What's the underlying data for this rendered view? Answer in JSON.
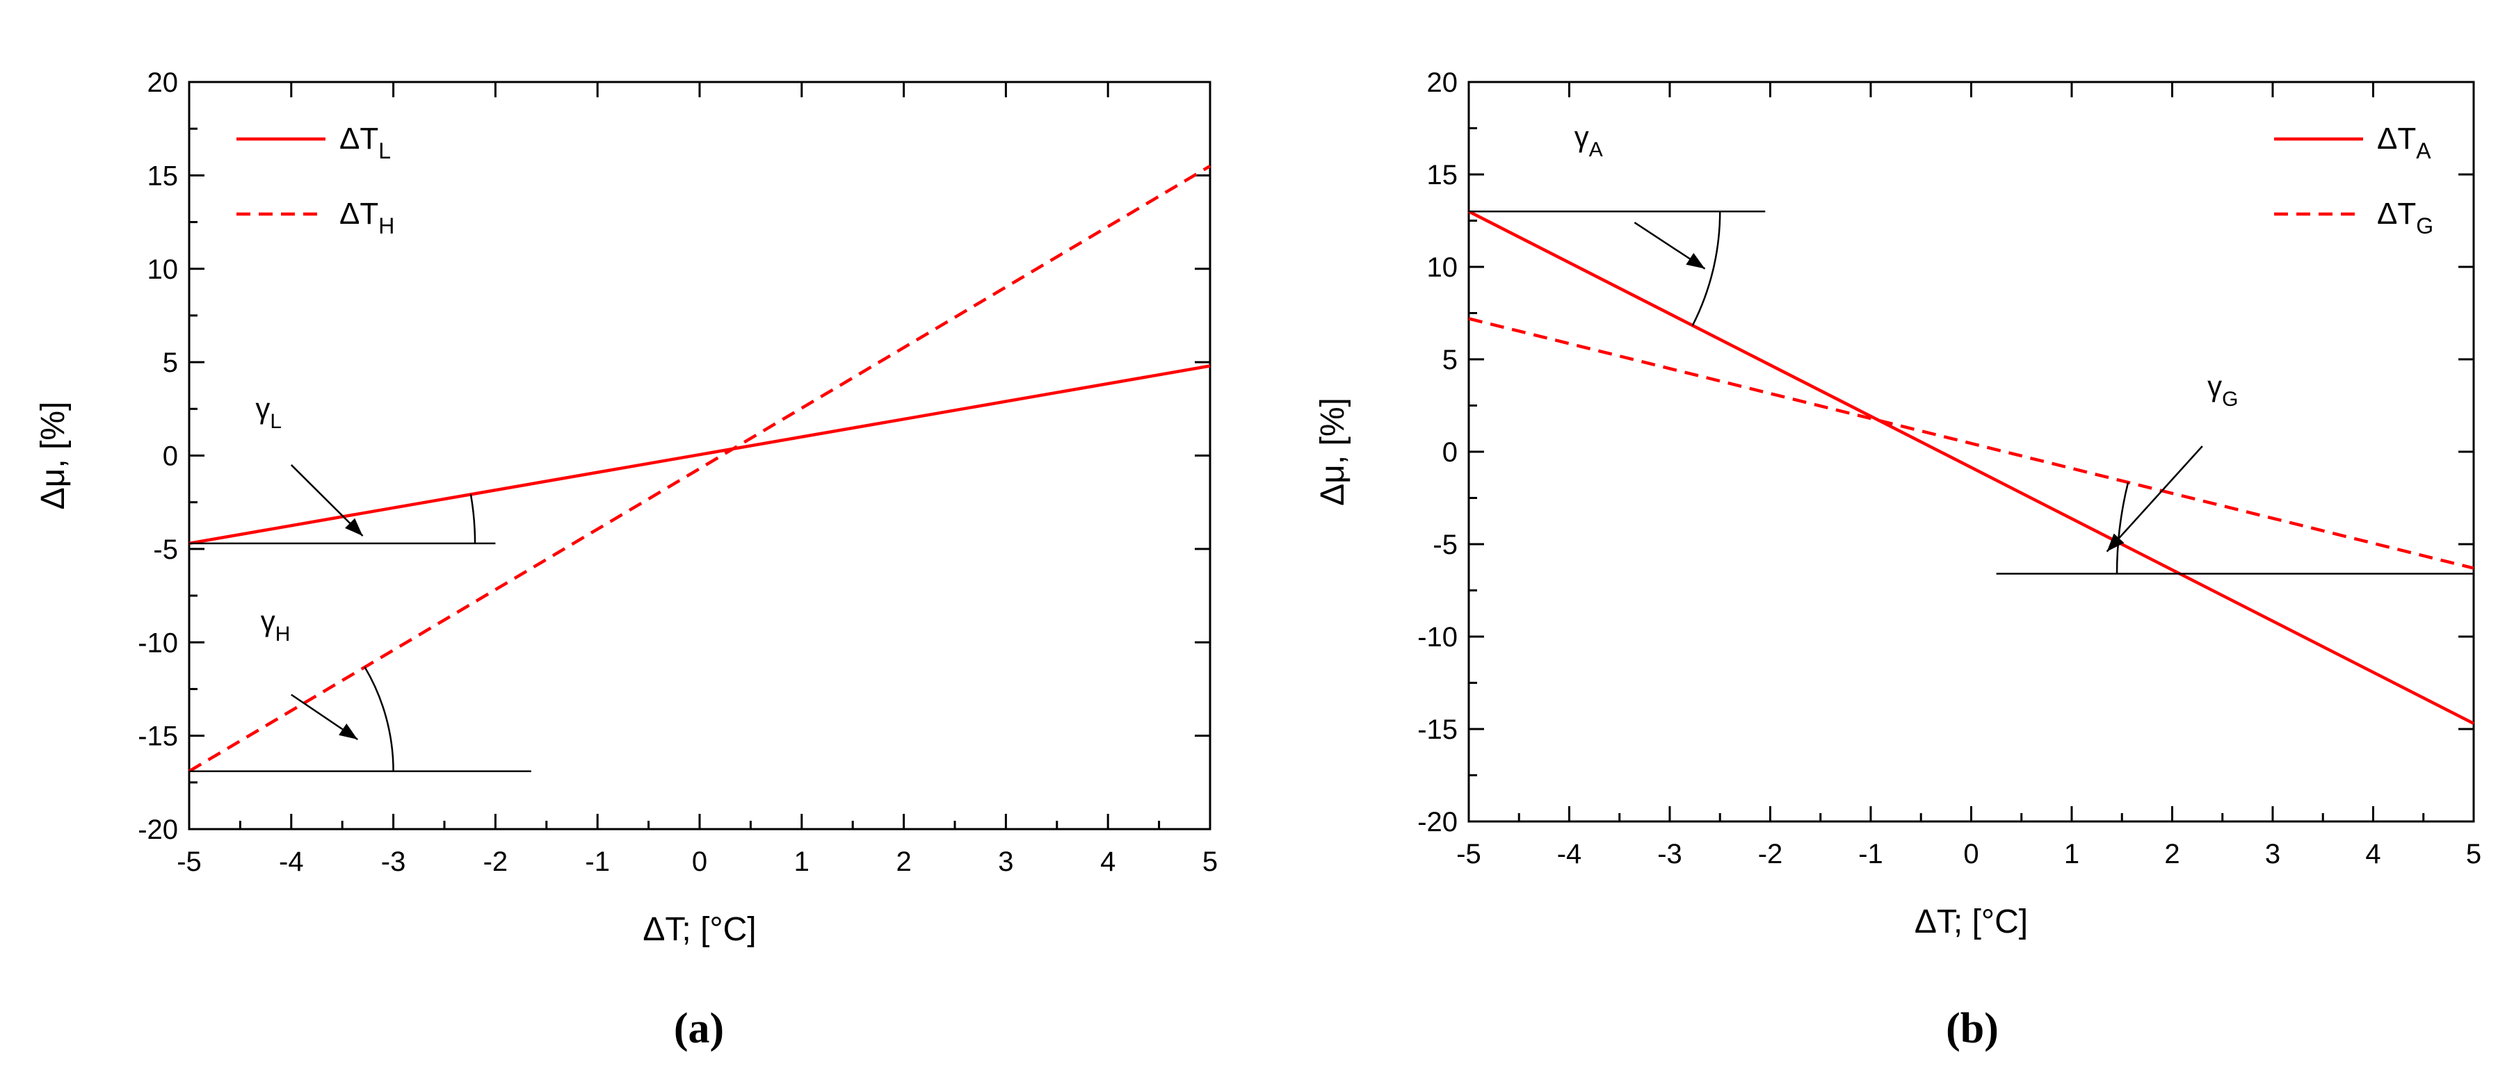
{
  "chart_data": [
    {
      "type": "line",
      "panel_label": "(a)",
      "xlabel": "ΔT; [°C]",
      "ylabel": "Δμ, [%]",
      "xlim": [
        -5,
        5
      ],
      "ylim": [
        -20,
        20
      ],
      "xticks": [
        -5,
        -4,
        -3,
        -2,
        -1,
        0,
        1,
        2,
        3,
        4,
        5
      ],
      "yticks": [
        -20,
        -15,
        -10,
        -5,
        0,
        5,
        10,
        15,
        20
      ],
      "grid": false,
      "legend_position": "top-left",
      "series": [
        {
          "name": "ΔT",
          "name_sub": "L",
          "style": "solid",
          "color": "#ff0000",
          "x": [
            -5,
            5
          ],
          "y": [
            -4.7,
            4.8
          ]
        },
        {
          "name": "ΔT",
          "name_sub": "H",
          "style": "dashed",
          "color": "#ff0000",
          "x": [
            -5,
            5
          ],
          "y": [
            -16.9,
            15.5
          ]
        }
      ],
      "angle_annotations": [
        {
          "symbol": "γ",
          "sub": "L",
          "series": 0,
          "baseline_y": -4.7,
          "baseline_x": [
            -5,
            -2
          ],
          "arc_x": -2.2,
          "label_x": -4.35,
          "label_y": 2.0,
          "arrow_from": [
            -4.0,
            -0.5
          ],
          "arrow_to": [
            -3.3,
            -4.3
          ]
        },
        {
          "symbol": "γ",
          "sub": "H",
          "series": 1,
          "baseline_y": -16.9,
          "baseline_x": [
            -5,
            -1.65
          ],
          "arc_x": -3.0,
          "label_x": -4.3,
          "label_y": -9.4,
          "arrow_from": [
            -4.0,
            -12.8
          ],
          "arrow_to": [
            -3.35,
            -15.2
          ]
        }
      ]
    },
    {
      "type": "line",
      "panel_label": "(b)",
      "xlabel": "ΔT; [°C]",
      "ylabel": "Δμ, [%]",
      "xlim": [
        -5,
        5
      ],
      "ylim": [
        -20,
        20
      ],
      "xticks": [
        -5,
        -4,
        -3,
        -2,
        -1,
        0,
        1,
        2,
        3,
        4,
        5
      ],
      "yticks": [
        -20,
        -15,
        -10,
        -5,
        0,
        5,
        10,
        15,
        20
      ],
      "grid": false,
      "legend_position": "top-right",
      "series": [
        {
          "name": "ΔT",
          "name_sub": "A",
          "style": "solid",
          "color": "#ff0000",
          "x": [
            -5,
            5
          ],
          "y": [
            13.0,
            -14.7
          ]
        },
        {
          "name": "ΔT",
          "name_sub": "G",
          "style": "dashed",
          "color": "#ff0000",
          "x": [
            -5,
            5
          ],
          "y": [
            7.2,
            -6.3
          ]
        }
      ],
      "angle_annotations": [
        {
          "symbol": "γ",
          "sub": "A",
          "series": 0,
          "baseline_y": 13.0,
          "baseline_x": [
            -5,
            -2.05
          ],
          "arc_x": -2.5,
          "label_x": -3.95,
          "label_y": 16.5,
          "arrow_from": [
            -3.35,
            12.4
          ],
          "arrow_to": [
            -2.65,
            9.9
          ]
        },
        {
          "symbol": "γ",
          "sub": "G",
          "series": 1,
          "baseline_y": -6.6,
          "baseline_x": [
            0.25,
            5
          ],
          "arc_x": 1.45,
          "label_x": 2.35,
          "label_y": 3.0,
          "arrow_from": [
            2.3,
            0.3
          ],
          "arrow_to": [
            1.35,
            -5.4
          ]
        }
      ]
    }
  ]
}
